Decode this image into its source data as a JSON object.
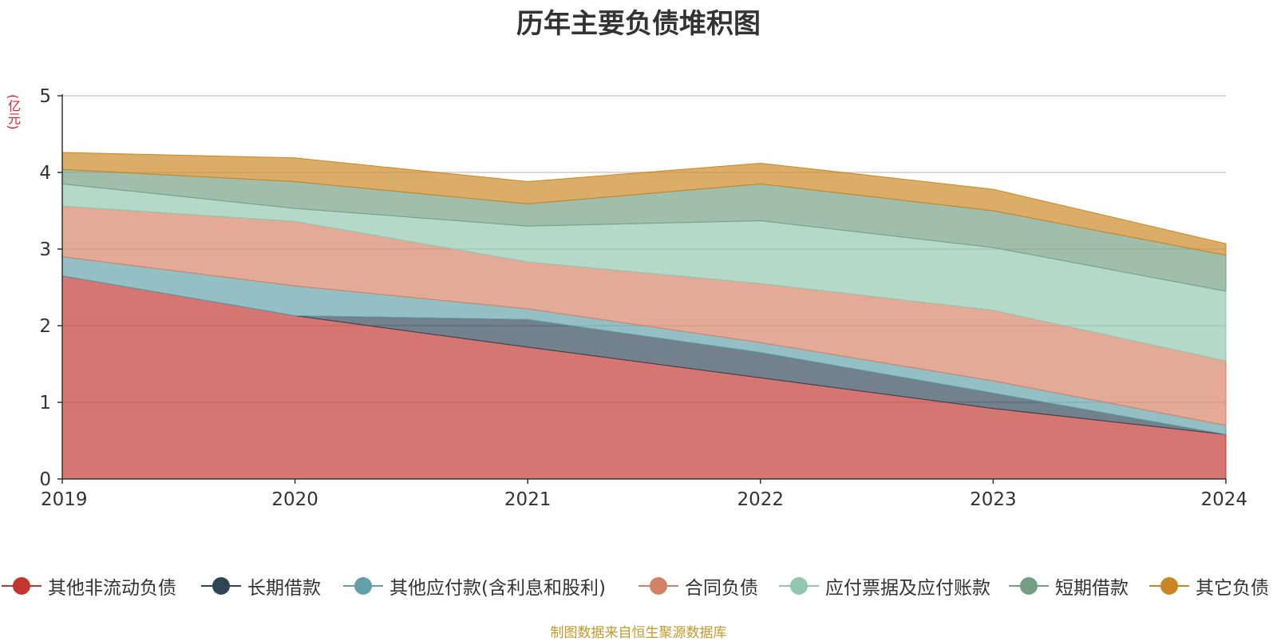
{
  "chart_data": {
    "type": "area",
    "stacked": true,
    "title": "历年主要负债堆积图",
    "ylabel": "(亿元)",
    "xlabel": "",
    "x": [
      "2019",
      "2020",
      "2021",
      "2022",
      "2023",
      "2024"
    ],
    "ylim": [
      0,
      5
    ],
    "yticks": [
      "0",
      "1",
      "2",
      "3",
      "4",
      "5"
    ],
    "grid": true,
    "legend_position": "bottom",
    "series": [
      {
        "name": "其他非流动负债",
        "color": "#c23531",
        "values": [
          2.65,
          2.13,
          1.72,
          1.32,
          0.92,
          0.58
        ]
      },
      {
        "name": "长期借款",
        "color": "#2f4554",
        "values": [
          0.0,
          0.0,
          0.36,
          0.33,
          0.2,
          0.0
        ]
      },
      {
        "name": "其他应付款(含利息和股利)",
        "color": "#61a0a8",
        "values": [
          0.25,
          0.39,
          0.14,
          0.13,
          0.16,
          0.12
        ]
      },
      {
        "name": "合同负债",
        "color": "#d48265",
        "values": [
          0.66,
          0.84,
          0.61,
          0.77,
          0.92,
          0.84
        ]
      },
      {
        "name": "应付票据及应付账款",
        "color": "#91c7ae",
        "values": [
          0.29,
          0.17,
          0.47,
          0.82,
          0.82,
          0.91
        ]
      },
      {
        "name": "短期借款",
        "color": "#749f83",
        "values": [
          0.19,
          0.35,
          0.29,
          0.48,
          0.48,
          0.47
        ]
      },
      {
        "name": "其它负债",
        "color": "#ca8622",
        "values": [
          0.22,
          0.31,
          0.29,
          0.27,
          0.28,
          0.15
        ]
      }
    ]
  },
  "footer": {
    "source": "制图数据来自恒生聚源数据库"
  }
}
